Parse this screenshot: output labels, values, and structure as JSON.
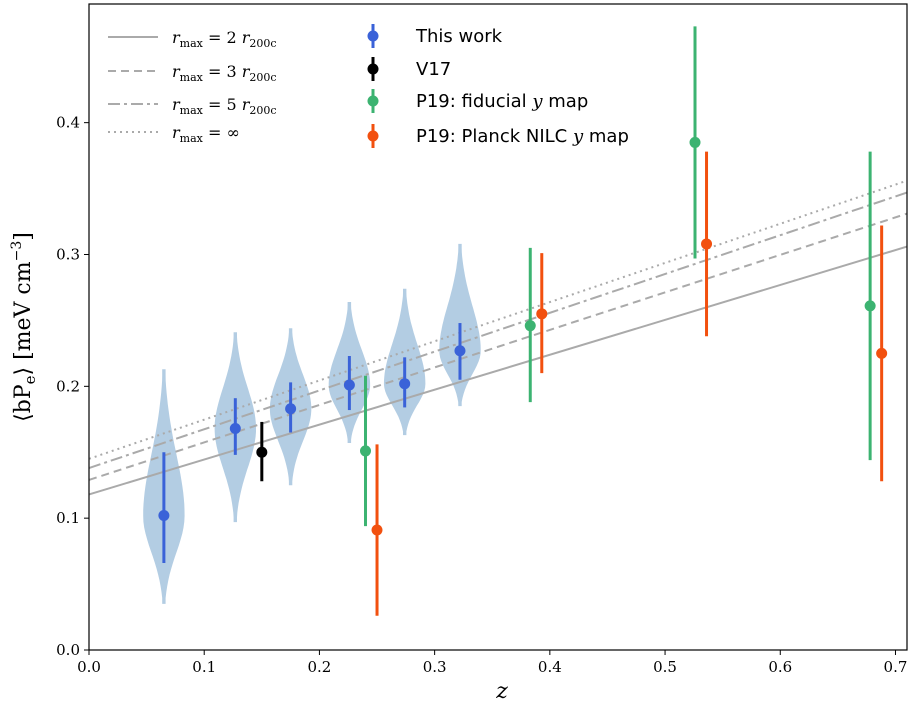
{
  "chart_data": {
    "type": "scatter",
    "xlabel": "z",
    "ylabel": "⟨bP",
    "ylabel_sub": "e",
    "ylabel_unit": "⟩ [meV cm",
    "ylabel_exp": "−3",
    "ylabel_close": "]",
    "xlim": [
      0.0,
      0.71
    ],
    "ylim": [
      0.0,
      0.49
    ],
    "x_ticks": [
      0.0,
      0.1,
      0.2,
      0.3,
      0.4,
      0.5,
      0.6,
      0.7
    ],
    "x_tick_labels": [
      "0.0",
      "0.1",
      "0.2",
      "0.3",
      "0.4",
      "0.5",
      "0.6",
      "0.7"
    ],
    "y_ticks": [
      0.0,
      0.1,
      0.2,
      0.3,
      0.4
    ],
    "y_tick_labels": [
      "0.0",
      "0.1",
      "0.2",
      "0.3",
      "0.4"
    ],
    "grid": false,
    "legend_position": "top-left",
    "model_lines": [
      {
        "legend": "r_max = 2 r_200c",
        "style": "solid",
        "color": "#aaaaaa",
        "x": [
          0.0,
          0.71
        ],
        "y": [
          0.118,
          0.306
        ]
      },
      {
        "legend": "r_max = 3 r_200c",
        "style": "dashed",
        "color": "#aaaaaa",
        "x": [
          0.0,
          0.71
        ],
        "y": [
          0.129,
          0.331
        ]
      },
      {
        "legend": "r_max = 5 r_200c",
        "style": "dashdot",
        "color": "#aaaaaa",
        "x": [
          0.0,
          0.71
        ],
        "y": [
          0.138,
          0.347
        ]
      },
      {
        "legend": "r_max = ∞",
        "style": "dotted",
        "color": "#aaaaaa",
        "x": [
          0.0,
          0.71
        ],
        "y": [
          0.145,
          0.356
        ]
      }
    ],
    "violins": [
      {
        "x": 0.065,
        "y_low": 0.035,
        "y_high": 0.213,
        "mode": 0.102
      },
      {
        "x": 0.127,
        "y_low": 0.097,
        "y_high": 0.241,
        "mode": 0.168
      },
      {
        "x": 0.175,
        "y_low": 0.125,
        "y_high": 0.244,
        "mode": 0.183
      },
      {
        "x": 0.226,
        "y_low": 0.157,
        "y_high": 0.264,
        "mode": 0.201
      },
      {
        "x": 0.274,
        "y_low": 0.163,
        "y_high": 0.274,
        "mode": 0.202
      },
      {
        "x": 0.322,
        "y_low": 0.185,
        "y_high": 0.308,
        "mode": 0.227
      }
    ],
    "series": [
      {
        "name": "This work",
        "color": "#3a62d8",
        "points": [
          {
            "x": 0.065,
            "y": 0.102,
            "lo": 0.066,
            "hi": 0.15
          },
          {
            "x": 0.127,
            "y": 0.168,
            "lo": 0.148,
            "hi": 0.191
          },
          {
            "x": 0.175,
            "y": 0.183,
            "lo": 0.165,
            "hi": 0.203
          },
          {
            "x": 0.226,
            "y": 0.201,
            "lo": 0.182,
            "hi": 0.223
          },
          {
            "x": 0.274,
            "y": 0.202,
            "lo": 0.184,
            "hi": 0.222
          },
          {
            "x": 0.322,
            "y": 0.227,
            "lo": 0.205,
            "hi": 0.248
          }
        ]
      },
      {
        "name": "V17",
        "color": "#000000",
        "points": [
          {
            "x": 0.15,
            "y": 0.15,
            "lo": 0.128,
            "hi": 0.173
          }
        ]
      },
      {
        "name": "P19: fiducial y map",
        "color": "#3cb371",
        "points": [
          {
            "x": 0.24,
            "y": 0.151,
            "lo": 0.094,
            "hi": 0.208
          },
          {
            "x": 0.383,
            "y": 0.246,
            "lo": 0.188,
            "hi": 0.305
          },
          {
            "x": 0.526,
            "y": 0.385,
            "lo": 0.297,
            "hi": 0.473
          },
          {
            "x": 0.678,
            "y": 0.261,
            "lo": 0.144,
            "hi": 0.378
          }
        ]
      },
      {
        "name": "P19: Planck NILC y map",
        "color": "#f2500f",
        "points": [
          {
            "x": 0.25,
            "y": 0.091,
            "lo": 0.026,
            "hi": 0.156
          },
          {
            "x": 0.393,
            "y": 0.255,
            "lo": 0.21,
            "hi": 0.301
          },
          {
            "x": 0.536,
            "y": 0.308,
            "lo": 0.238,
            "hi": 0.378
          },
          {
            "x": 0.688,
            "y": 0.225,
            "lo": 0.128,
            "hi": 0.322
          }
        ]
      }
    ]
  },
  "legend": {
    "lines": [
      {
        "main": "r",
        "sub": "max",
        "eq": " = 2 ",
        "r": "r",
        "rsub": "200c"
      },
      {
        "main": "r",
        "sub": "max",
        "eq": " = 3 ",
        "r": "r",
        "rsub": "200c"
      },
      {
        "main": "r",
        "sub": "max",
        "eq": " = 5 ",
        "r": "r",
        "rsub": "200c"
      },
      {
        "main": "r",
        "sub": "max",
        "eq": " = ∞",
        "r": "",
        "rsub": ""
      }
    ],
    "series_labels": [
      {
        "text": "This work",
        "math": ""
      },
      {
        "text": "V17",
        "math": ""
      },
      {
        "text": "P19: fiducial ",
        "math": "y",
        "after": " map"
      },
      {
        "text": "P19: Planck NILC ",
        "math": "y",
        "after": " map"
      }
    ]
  }
}
